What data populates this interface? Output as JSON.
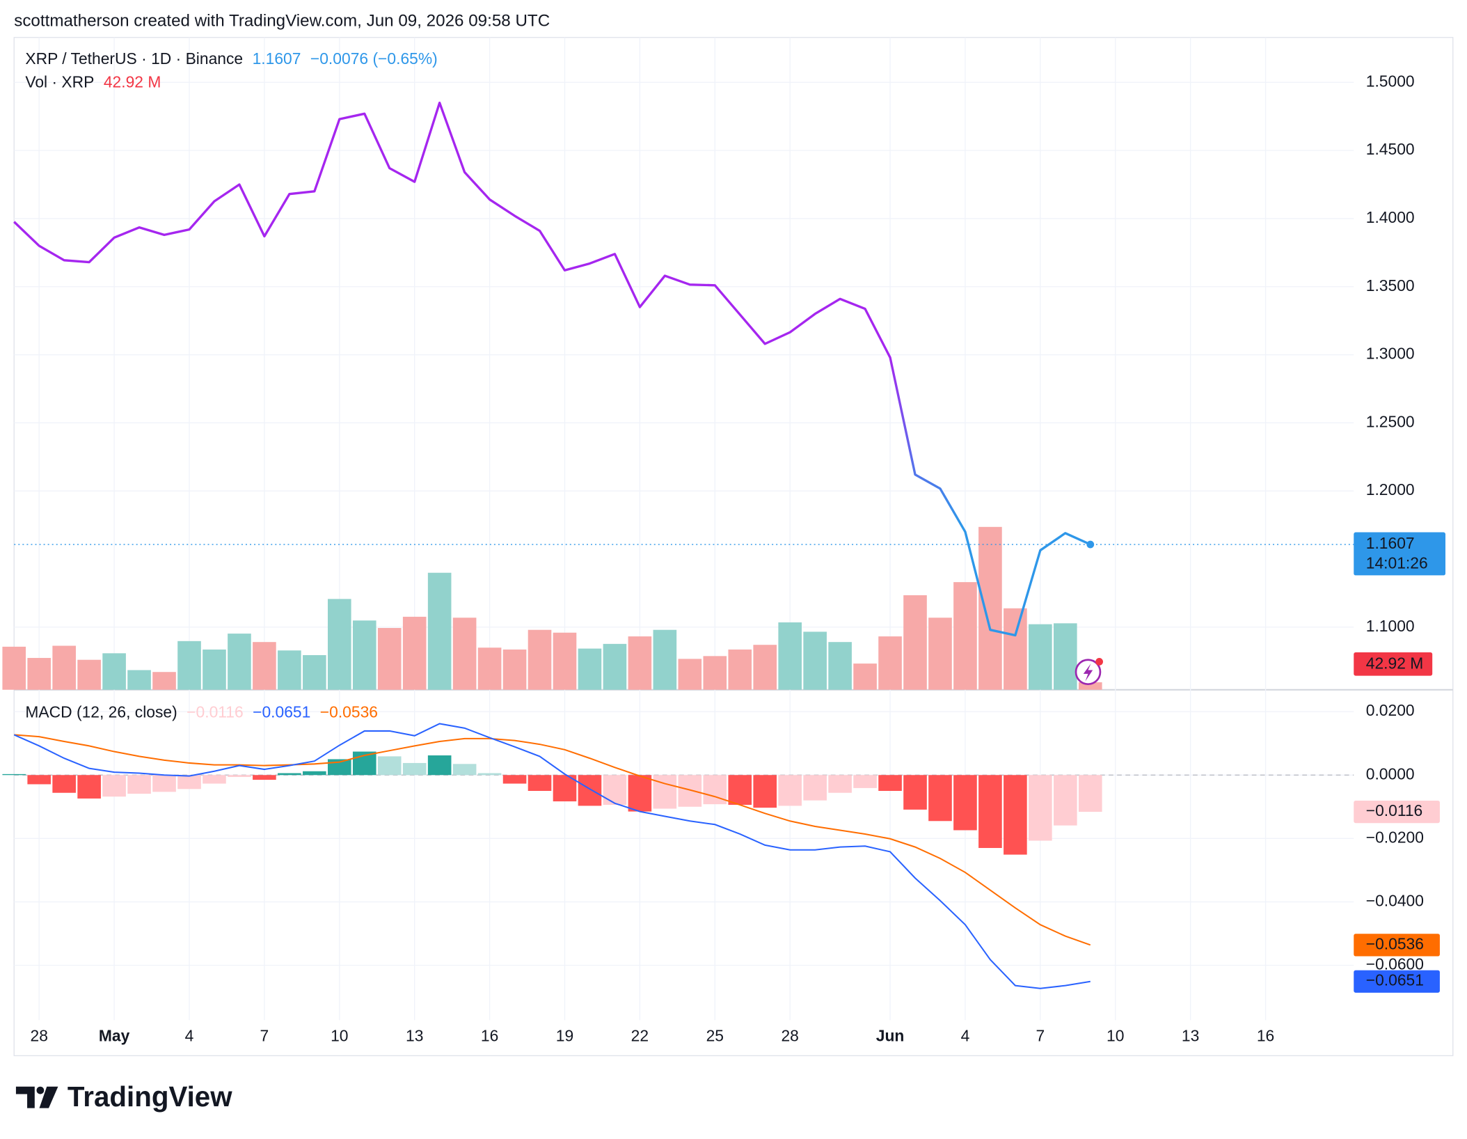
{
  "header": {
    "attribution": "scottmatherson created with TradingView.com, Jun 09, 2026 09:58 UTC",
    "logo": "TradingView"
  },
  "chart_data": [
    {
      "type": "line",
      "title": "XRP / TetherUS · 1D · Binance",
      "change_label": "−0.0076 (−0.65%)",
      "countdown": "14:01:26",
      "colors": [
        "#a526ef",
        "#2e97e9"
      ],
      "x": [
        "2026-04-27",
        "2026-04-28",
        "2026-04-29",
        "2026-04-30",
        "2026-05-01",
        "2026-05-02",
        "2026-05-03",
        "2026-05-04",
        "2026-05-05",
        "2026-05-06",
        "2026-05-07",
        "2026-05-08",
        "2026-05-09",
        "2026-05-10",
        "2026-05-11",
        "2026-05-12",
        "2026-05-13",
        "2026-05-14",
        "2026-05-15",
        "2026-05-16",
        "2026-05-17",
        "2026-05-18",
        "2026-05-19",
        "2026-05-20",
        "2026-05-21",
        "2026-05-22",
        "2026-05-23",
        "2026-05-24",
        "2026-05-25",
        "2026-05-26",
        "2026-05-27",
        "2026-05-28",
        "2026-05-29",
        "2026-05-30",
        "2026-05-31",
        "2026-06-01",
        "2026-06-02",
        "2026-06-03",
        "2026-06-04",
        "2026-06-05",
        "2026-06-06",
        "2026-06-07",
        "2026-06-08",
        "2026-06-09"
      ],
      "values": [
        1.3976,
        1.38,
        1.3694,
        1.368,
        1.386,
        1.3935,
        1.388,
        1.392,
        1.4127,
        1.425,
        1.387,
        1.418,
        1.42,
        1.473,
        1.477,
        1.437,
        1.427,
        1.485,
        1.434,
        1.414,
        1.402,
        1.391,
        1.362,
        1.367,
        1.374,
        1.335,
        1.358,
        1.3515,
        1.351,
        1.3295,
        1.308,
        1.3165,
        1.33,
        1.341,
        1.3337,
        1.298,
        1.212,
        1.2017,
        1.17,
        1.098,
        1.094,
        1.1564,
        1.169,
        1.1607
      ],
      "xlim": [
        "2026-04-27",
        "2026-06-19"
      ],
      "xticks": [
        {
          "value": "2026-04-28",
          "label": "28"
        },
        {
          "value": "2026-05-01",
          "label": "May"
        },
        {
          "value": "2026-05-04",
          "label": "4"
        },
        {
          "value": "2026-05-07",
          "label": "7"
        },
        {
          "value": "2026-05-10",
          "label": "10"
        },
        {
          "value": "2026-05-13",
          "label": "13"
        },
        {
          "value": "2026-05-16",
          "label": "16"
        },
        {
          "value": "2026-05-19",
          "label": "19"
        },
        {
          "value": "2026-05-22",
          "label": "22"
        },
        {
          "value": "2026-05-25",
          "label": "25"
        },
        {
          "value": "2026-05-28",
          "label": "28"
        },
        {
          "value": "2026-06-01",
          "label": "Jun"
        },
        {
          "value": "2026-06-04",
          "label": "4"
        },
        {
          "value": "2026-06-07",
          "label": "7"
        },
        {
          "value": "2026-06-10",
          "label": "10"
        },
        {
          "value": "2026-06-13",
          "label": "13"
        },
        {
          "value": "2026-06-16",
          "label": "16"
        }
      ],
      "ylim": [
        1.054,
        1.533
      ],
      "yticks": [
        {
          "value": 1.5,
          "label": "1.5000"
        },
        {
          "value": 1.45,
          "label": "1.4500"
        },
        {
          "value": 1.4,
          "label": "1.4000"
        },
        {
          "value": 1.35,
          "label": "1.3500"
        },
        {
          "value": 1.3,
          "label": "1.3000"
        },
        {
          "value": 1.25,
          "label": "1.2500"
        },
        {
          "value": 1.2,
          "label": "1.2000"
        },
        {
          "value": 1.1,
          "label": "1.1000"
        }
      ],
      "grid": true
    },
    {
      "type": "bar",
      "title": "Vol · XRP",
      "last_value_label": "42.92 M",
      "colors": {
        "up": "#92d2cc",
        "down": "#f7a9a8",
        "label": "#f23645"
      },
      "values": [
        246.8,
        182.4,
        252.2,
        171.7,
        209.2,
        112.7,
        101.9,
        279.0,
        230.7,
        321.9,
        273.6,
        225.3,
        198.5,
        520.4,
        397.0,
        354.1,
        418.5,
        670.6,
        413.1,
        241.4,
        230.7,
        343.4,
        327.3,
        236.1,
        262.9,
        305.8,
        343.4,
        177.0,
        193.1,
        230.7,
        257.5,
        386.3,
        332.6,
        273.6,
        150.2,
        305.8,
        541.9,
        413.1,
        617.0,
        933.5,
        466.8,
        375.6,
        380.9,
        42.92
      ],
      "ylim": [
        0,
        3739
      ]
    },
    {
      "type": "macd",
      "title": "MACD (12, 26, close)",
      "histogram": {
        "colors": {
          "grow_up": "#26a69a",
          "fall_up": "#b2dfdb",
          "grow_down": "#ff5252",
          "fall_down": "#ffcdd2"
        },
        "last_value_label": "−0.0116",
        "values": [
          0.0003,
          -0.0029,
          -0.0056,
          -0.0074,
          -0.0068,
          -0.0059,
          -0.0053,
          -0.0044,
          -0.0027,
          -0.0006,
          -0.0015,
          0.0006,
          0.0012,
          0.005,
          0.0074,
          0.0059,
          0.0038,
          0.0062,
          0.0035,
          0.0006,
          -0.0027,
          -0.005,
          -0.0083,
          -0.0097,
          -0.0094,
          -0.0115,
          -0.0106,
          -0.01,
          -0.0092,
          -0.0094,
          -0.0103,
          -0.0097,
          -0.008,
          -0.0056,
          -0.0041,
          -0.005,
          -0.0109,
          -0.0145,
          -0.0174,
          -0.023,
          -0.0251,
          -0.0207,
          -0.0159,
          -0.0116
        ]
      },
      "macd": {
        "color": "#2962ff",
        "last_value_label": "−0.0651",
        "values": [
          0.0127,
          0.0092,
          0.0053,
          0.0021,
          0.0009,
          0.0006,
          0.0,
          -0.0003,
          0.0012,
          0.003,
          0.0018,
          0.003,
          0.0044,
          0.0094,
          0.0139,
          0.0139,
          0.0124,
          0.0162,
          0.0148,
          0.0118,
          0.0089,
          0.0059,
          0.0003,
          -0.0044,
          -0.0089,
          -0.0115,
          -0.013,
          -0.0145,
          -0.0156,
          -0.0186,
          -0.0221,
          -0.0236,
          -0.0236,
          -0.0227,
          -0.0224,
          -0.0242,
          -0.0325,
          -0.0396,
          -0.0472,
          -0.0582,
          -0.0664,
          -0.0673,
          -0.0664,
          -0.0651
        ]
      },
      "signal": {
        "color": "#ff6d00",
        "last_value_label": "−0.0536",
        "values": [
          0.0127,
          0.0121,
          0.0106,
          0.0092,
          0.0074,
          0.0059,
          0.0047,
          0.0038,
          0.0032,
          0.0032,
          0.003,
          0.0032,
          0.0035,
          0.0041,
          0.0062,
          0.0077,
          0.0092,
          0.0106,
          0.0115,
          0.0115,
          0.0109,
          0.0097,
          0.008,
          0.0053,
          0.0024,
          -0.0003,
          -0.0027,
          -0.0047,
          -0.0068,
          -0.0094,
          -0.0121,
          -0.0145,
          -0.0162,
          -0.0174,
          -0.0186,
          -0.0201,
          -0.0227,
          -0.0263,
          -0.0307,
          -0.0363,
          -0.0419,
          -0.0472,
          -0.0508,
          -0.0536
        ]
      },
      "ylim": [
        -0.0773,
        0.0269
      ],
      "yticks": [
        {
          "value": 0.02,
          "label": "0.0200"
        },
        {
          "value": 0,
          "label": "0.0000"
        },
        {
          "value": -0.02,
          "label": "−0.0200"
        },
        {
          "value": -0.04,
          "label": "−0.0400"
        },
        {
          "value": -0.06,
          "label": "−0.0600"
        }
      ],
      "grid": true
    }
  ]
}
